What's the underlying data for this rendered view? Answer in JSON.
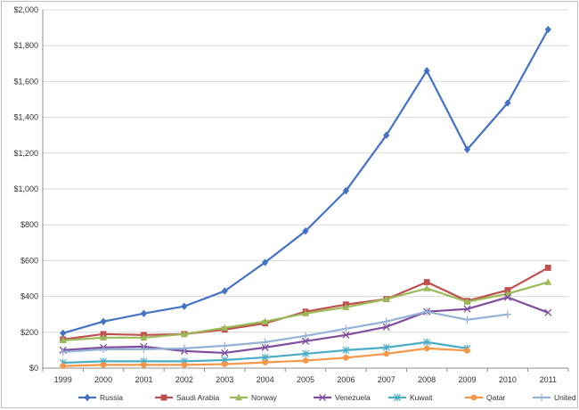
{
  "chart_data": {
    "type": "line",
    "title": "",
    "xlabel": "",
    "ylabel": "",
    "categories": [
      "1999",
      "2000",
      "2001",
      "2002",
      "2003",
      "2004",
      "2005",
      "2006",
      "2007",
      "2008",
      "2009",
      "2010",
      "2011"
    ],
    "ylim": [
      0,
      2000
    ],
    "yticks": [
      0,
      200,
      400,
      600,
      800,
      1000,
      1200,
      1400,
      1600,
      1800,
      2000
    ],
    "ytick_labels": [
      "$0",
      "$200",
      "$400",
      "$600",
      "$800",
      "$1,000",
      "$1,200",
      "$1,400",
      "$1,600",
      "$1,800",
      "$2,000"
    ],
    "grid": "horizontal",
    "legend_position": "bottom",
    "series": [
      {
        "name": "Russia",
        "color": "#4472c4",
        "marker": "diamond",
        "values": [
          195,
          260,
          305,
          345,
          430,
          590,
          765,
          990,
          1300,
          1660,
          1220,
          1480,
          1890
        ]
      },
      {
        "name": "Saudi Arabia",
        "color": "#c0504d",
        "marker": "square",
        "values": [
          160,
          190,
          185,
          190,
          215,
          250,
          315,
          355,
          385,
          480,
          375,
          435,
          560
        ]
      },
      {
        "name": "Norway",
        "color": "#9bbb59",
        "marker": "triangle",
        "values": [
          155,
          170,
          170,
          190,
          225,
          260,
          305,
          340,
          385,
          445,
          370,
          415,
          480
        ]
      },
      {
        "name": "Venezuela",
        "color": "#7f4e9e",
        "marker": "x",
        "values": [
          100,
          115,
          120,
          95,
          85,
          115,
          150,
          185,
          230,
          315,
          330,
          395,
          310
        ]
      },
      {
        "name": "Kuwait",
        "color": "#4bacc6",
        "marker": "star",
        "values": [
          30,
          38,
          38,
          38,
          45,
          60,
          80,
          100,
          115,
          145,
          110,
          null,
          null
        ]
      },
      {
        "name": "Qatar",
        "color": "#f79646",
        "marker": "circle",
        "values": [
          12,
          18,
          18,
          18,
          22,
          32,
          42,
          58,
          80,
          110,
          98,
          null,
          null
        ]
      },
      {
        "name": "United Arab Emirates",
        "color": "#95b3d7",
        "marker": "plus",
        "values": [
          90,
          105,
          105,
          110,
          125,
          145,
          180,
          220,
          260,
          315,
          270,
          300,
          null
        ]
      }
    ]
  }
}
